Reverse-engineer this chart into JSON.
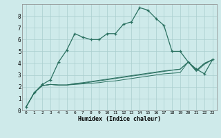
{
  "xlabel": "Humidex (Indice chaleur)",
  "bg_color": "#ceeaea",
  "grid_color": "#aacece",
  "line_color": "#2a7060",
  "xlim": [
    -0.5,
    23.5
  ],
  "ylim": [
    0,
    9
  ],
  "xticks": [
    0,
    1,
    2,
    3,
    4,
    5,
    6,
    7,
    8,
    9,
    10,
    11,
    12,
    13,
    14,
    15,
    16,
    17,
    18,
    19,
    20,
    21,
    22,
    23
  ],
  "yticks": [
    0,
    1,
    2,
    3,
    4,
    5,
    6,
    7,
    8
  ],
  "main_x": [
    0,
    1,
    2,
    3,
    4,
    5,
    6,
    7,
    8,
    9,
    10,
    11,
    12,
    13,
    14,
    15,
    16,
    17,
    18,
    19,
    20,
    21,
    22,
    23
  ],
  "main_y": [
    0.3,
    1.5,
    2.2,
    2.6,
    4.1,
    5.1,
    6.5,
    6.2,
    6.0,
    6.0,
    6.5,
    6.5,
    7.3,
    7.5,
    8.7,
    8.5,
    7.8,
    7.2,
    5.0,
    5.0,
    4.1,
    3.5,
    3.1,
    4.3
  ],
  "line2_x": [
    0,
    1,
    2,
    3,
    4,
    5,
    6,
    7,
    8,
    9,
    10,
    11,
    12,
    13,
    14,
    15,
    16,
    17,
    18,
    19,
    20,
    21,
    22,
    23
  ],
  "line2_y": [
    0.3,
    1.5,
    2.1,
    2.2,
    2.15,
    2.15,
    2.2,
    2.25,
    2.3,
    2.35,
    2.45,
    2.5,
    2.6,
    2.7,
    2.8,
    2.9,
    3.0,
    3.1,
    3.15,
    3.2,
    4.1,
    3.3,
    3.9,
    4.3
  ],
  "line3_x": [
    0,
    1,
    2,
    3,
    4,
    5,
    6,
    7,
    8,
    9,
    10,
    11,
    12,
    13,
    14,
    15,
    16,
    17,
    18,
    19,
    20,
    21,
    22,
    23
  ],
  "line3_y": [
    0.3,
    1.5,
    2.1,
    2.2,
    2.15,
    2.15,
    2.25,
    2.3,
    2.4,
    2.5,
    2.6,
    2.7,
    2.8,
    2.9,
    3.0,
    3.1,
    3.2,
    3.3,
    3.4,
    3.5,
    4.1,
    3.4,
    4.0,
    4.3
  ],
  "line4_x": [
    0,
    1,
    2,
    3,
    4,
    5,
    6,
    7,
    8,
    9,
    10,
    11,
    12,
    13,
    14,
    15,
    16,
    17,
    18,
    19,
    20,
    21,
    22,
    23
  ],
  "line4_y": [
    0.3,
    1.5,
    2.1,
    2.2,
    2.15,
    2.15,
    2.28,
    2.35,
    2.45,
    2.55,
    2.65,
    2.75,
    2.85,
    2.95,
    3.05,
    3.15,
    3.25,
    3.35,
    3.42,
    3.48,
    4.1,
    3.38,
    3.97,
    4.3
  ]
}
